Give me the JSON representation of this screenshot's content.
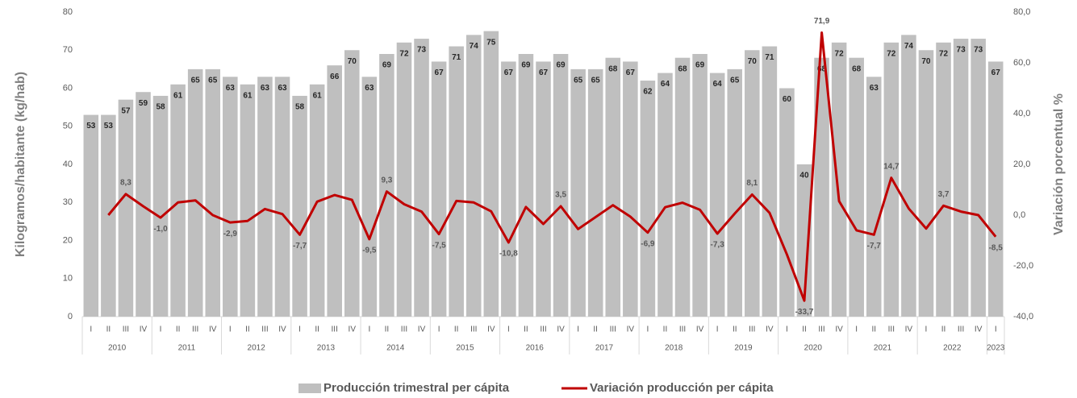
{
  "chart_data": {
    "type": "combo",
    "y_axis_label": "Kilogramos/habitante (kg/hab)",
    "y2_axis_label": "Variación porcentual %",
    "categories": [
      "I",
      "II",
      "III",
      "IV",
      "I",
      "II",
      "III",
      "IV",
      "I",
      "II",
      "III",
      "IV",
      "I",
      "II",
      "III",
      "IV",
      "I",
      "II",
      "III",
      "IV",
      "I",
      "II",
      "III",
      "IV",
      "I",
      "II",
      "III",
      "IV",
      "I",
      "II",
      "III",
      "IV",
      "I",
      "II",
      "III",
      "IV",
      "I",
      "II",
      "III",
      "IV",
      "I",
      "II",
      "III",
      "IV",
      "I",
      "II",
      "III",
      "IV",
      "I",
      "II",
      "III",
      "IV",
      "I"
    ],
    "years": [
      "2010",
      "2011",
      "2012",
      "2013",
      "2014",
      "2015",
      "2016",
      "2017",
      "2018",
      "2019",
      "2020",
      "2021",
      "2022",
      "2023"
    ],
    "series": [
      {
        "name": "Producción trimestral per cápita",
        "type": "bar",
        "color": "#bfbfbf",
        "values": [
          53,
          53,
          57,
          59,
          58,
          61,
          65,
          65,
          63,
          61,
          63,
          63,
          58,
          61,
          66,
          70,
          63,
          69,
          72,
          73,
          67,
          71,
          74,
          75,
          67,
          69,
          67,
          69,
          65,
          65,
          68,
          67,
          62,
          64,
          68,
          69,
          64,
          65,
          70,
          71,
          60,
          40,
          68,
          72,
          68,
          63,
          72,
          74,
          70,
          72,
          73,
          73,
          67
        ]
      },
      {
        "name": "Variación producción per cápita",
        "type": "line",
        "color": "#c00000",
        "axis": "y2",
        "values": [
          null,
          0.0,
          8.3,
          3.5,
          -1.0,
          5.0,
          5.8,
          0.0,
          -2.9,
          -2.3,
          2.4,
          0.4,
          -7.7,
          5.3,
          7.9,
          6.0,
          -9.5,
          9.3,
          4.3,
          1.4,
          -7.5,
          5.6,
          5.0,
          1.5,
          -10.8,
          3.2,
          -3.5,
          3.5,
          -5.5,
          -0.8,
          3.9,
          -0.6,
          -6.9,
          3.1,
          4.9,
          2.1,
          -7.3,
          0.6,
          8.1,
          0.9,
          -15.5,
          -33.7,
          71.9,
          5.5,
          -6.0,
          -7.7,
          14.7,
          2.6,
          -5.3,
          3.7,
          1.4,
          0.0,
          -8.5
        ],
        "value_labels": [
          null,
          null,
          "8,3",
          null,
          "-1,0",
          null,
          null,
          null,
          "-2,9",
          null,
          null,
          null,
          "-7,7",
          null,
          null,
          null,
          "-9,5",
          "9,3",
          null,
          null,
          "-7,5",
          null,
          null,
          null,
          "-10,8",
          null,
          null,
          "3,5",
          null,
          null,
          null,
          null,
          "-6,9",
          null,
          null,
          null,
          "-7,3",
          null,
          "8,1",
          null,
          null,
          "-33,7",
          "71,9",
          null,
          null,
          "-7,7",
          "14,7",
          null,
          null,
          "3,7",
          null,
          null,
          "-8,5"
        ]
      }
    ],
    "ylim": [
      0,
      80
    ],
    "yticks": [
      0,
      10,
      20,
      30,
      40,
      50,
      60,
      70,
      80
    ],
    "y2lim": [
      -40,
      80
    ],
    "y2ticks": [
      {
        "value": -40,
        "label": "-40,0"
      },
      {
        "value": -20,
        "label": "-20,0"
      },
      {
        "value": 0,
        "label": "0,0"
      },
      {
        "value": 20,
        "label": "20,0"
      },
      {
        "value": 40,
        "label": "40,0"
      },
      {
        "value": 60,
        "label": "60,0"
      },
      {
        "value": 80,
        "label": "80,0"
      }
    ],
    "grid": false,
    "legend": "bottom"
  }
}
